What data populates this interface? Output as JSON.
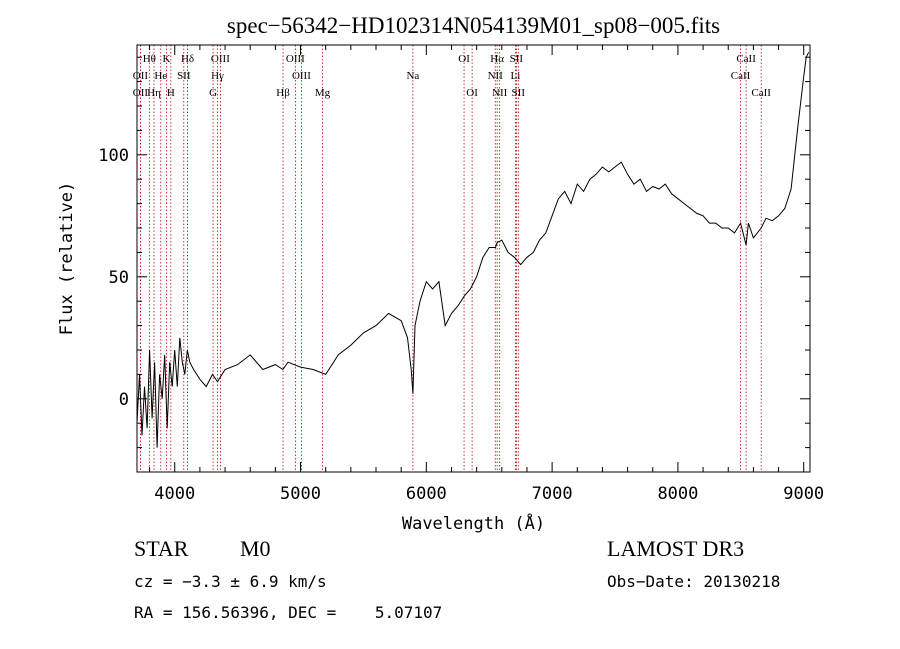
{
  "chart_data": {
    "type": "line",
    "title": "spec−56342−HD102314N054139M01_sp08−005.fits",
    "xlabel": "Wavelength (Å)",
    "ylabel": "Flux (relative)",
    "xlim": [
      3700,
      9050
    ],
    "ylim": [
      -30,
      145
    ],
    "xticks": [
      4000,
      5000,
      6000,
      7000,
      8000,
      9000
    ],
    "yticks": [
      0,
      50,
      100
    ],
    "grid": false,
    "x": [
      3700,
      3720,
      3740,
      3760,
      3780,
      3800,
      3820,
      3840,
      3860,
      3880,
      3900,
      3920,
      3940,
      3960,
      3980,
      4000,
      4020,
      4040,
      4060,
      4080,
      4100,
      4120,
      4150,
      4200,
      4250,
      4300,
      4340,
      4400,
      4500,
      4600,
      4700,
      4800,
      4860,
      4900,
      5000,
      5100,
      5200,
      5300,
      5400,
      5500,
      5600,
      5700,
      5800,
      5850,
      5880,
      5893,
      5910,
      5950,
      6000,
      6050,
      6100,
      6150,
      6200,
      6250,
      6300,
      6350,
      6400,
      6450,
      6500,
      6550,
      6563,
      6600,
      6650,
      6700,
      6750,
      6800,
      6850,
      6900,
      6950,
      7000,
      7050,
      7100,
      7150,
      7200,
      7250,
      7300,
      7350,
      7400,
      7450,
      7500,
      7550,
      7600,
      7650,
      7700,
      7750,
      7800,
      7850,
      7900,
      7950,
      8000,
      8050,
      8100,
      8150,
      8200,
      8250,
      8300,
      8350,
      8400,
      8450,
      8498,
      8542,
      8560,
      8600,
      8662,
      8700,
      8750,
      8800,
      8850,
      8900,
      8950,
      9000,
      9020,
      9040
    ],
    "y": [
      -10,
      10,
      -15,
      5,
      -12,
      20,
      -8,
      15,
      -20,
      10,
      0,
      18,
      -12,
      15,
      5,
      20,
      5,
      25,
      15,
      10,
      20,
      15,
      12,
      8,
      5,
      10,
      7,
      12,
      14,
      18,
      12,
      14,
      12,
      15,
      13,
      12,
      10,
      18,
      22,
      27,
      30,
      35,
      32,
      25,
      12,
      2,
      30,
      40,
      48,
      45,
      48,
      30,
      35,
      38,
      42,
      45,
      50,
      58,
      62,
      62,
      64,
      65,
      60,
      58,
      55,
      58,
      60,
      65,
      68,
      75,
      82,
      85,
      80,
      88,
      85,
      90,
      92,
      95,
      93,
      95,
      97,
      92,
      88,
      90,
      85,
      87,
      86,
      88,
      84,
      82,
      80,
      78,
      76,
      75,
      72,
      72,
      70,
      70,
      68,
      72,
      63,
      72,
      66,
      70,
      74,
      73,
      75,
      78,
      86,
      110,
      132,
      140,
      142
    ],
    "line_markers": [
      {
        "label": "Hθ",
        "x": 3798,
        "row": 1
      },
      {
        "label": "OII",
        "x": 3727,
        "row": 2
      },
      {
        "label": "OII",
        "x": 3727,
        "row": 3
      },
      {
        "label": "He",
        "x": 3889,
        "row": 2
      },
      {
        "label": "Hη",
        "x": 3835,
        "row": 3
      },
      {
        "label": "K",
        "x": 3934,
        "row": 1
      },
      {
        "label": "H",
        "x": 3969,
        "row": 3
      },
      {
        "label": "Hδ",
        "x": 4102,
        "row": 1
      },
      {
        "label": "SII",
        "x": 4072,
        "row": 2
      },
      {
        "label": "OIII",
        "x": 4363,
        "row": 1
      },
      {
        "label": "Hγ",
        "x": 4340,
        "row": 2
      },
      {
        "label": "G",
        "x": 4305,
        "row": 3
      },
      {
        "label": "Hβ",
        "x": 4861,
        "row": 3
      },
      {
        "label": "OIII",
        "x": 4959,
        "row": 1
      },
      {
        "label": "OIII",
        "x": 5007,
        "row": 2
      },
      {
        "label": "Mg",
        "x": 5175,
        "row": 3
      },
      {
        "label": "Na",
        "x": 5893,
        "row": 2
      },
      {
        "label": "OI",
        "x": 6300,
        "row": 1
      },
      {
        "label": "OI",
        "x": 6364,
        "row": 3
      },
      {
        "label": "Hα",
        "x": 6563,
        "row": 1
      },
      {
        "label": "NII",
        "x": 6548,
        "row": 2
      },
      {
        "label": "NII",
        "x": 6583,
        "row": 3
      },
      {
        "label": "SII",
        "x": 6716,
        "row": 1
      },
      {
        "label": "Li",
        "x": 6708,
        "row": 2
      },
      {
        "label": "SII",
        "x": 6731,
        "row": 3
      },
      {
        "label": "CaII",
        "x": 8542,
        "row": 1
      },
      {
        "label": "CaII",
        "x": 8498,
        "row": 2
      },
      {
        "label": "CaII",
        "x": 8662,
        "row": 3
      }
    ]
  },
  "footer": {
    "object_class": "STAR",
    "subclass": "M0",
    "redshift": "cz = −3.3 ± 6.9 km/s",
    "coords": "RA = 156.56396, DEC =    5.07107",
    "survey": "LAMOST DR3",
    "obs_date": "Obs−Date: 20130218"
  }
}
